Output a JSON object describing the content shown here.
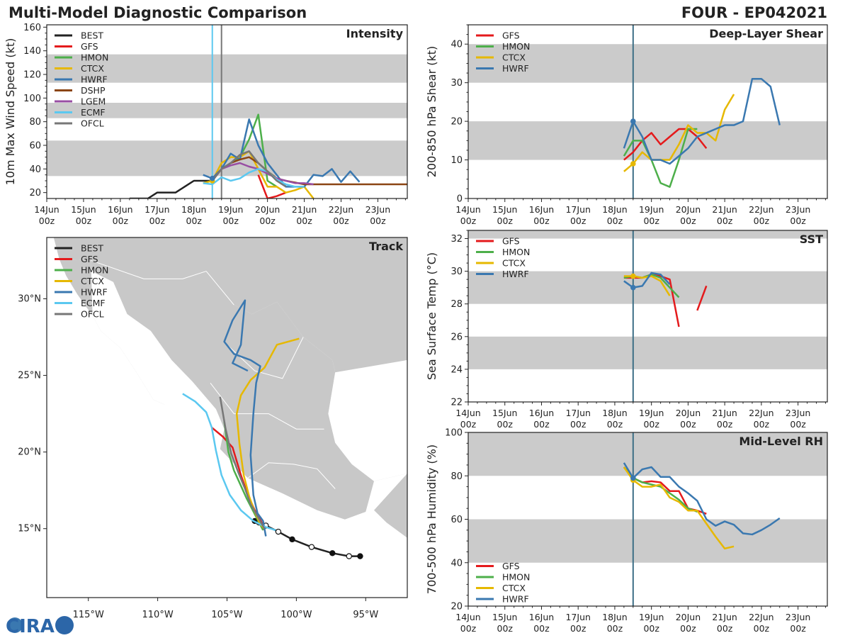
{
  "header": {
    "title": "Multi-Model Diagnostic Comparison",
    "storm_id": "FOUR - EP042021"
  },
  "colors": {
    "BEST": "#222222",
    "GFS": "#e41a1c",
    "HMON": "#4daf4a",
    "CTCX": "#e6b800",
    "HWRF": "#3a78b0",
    "DSHP": "#8b4513",
    "LGEM": "#984ea3",
    "ECMF": "#5bc8f0",
    "OFCL": "#777777",
    "band": "#cbcbcb",
    "land": "#c8c8c8",
    "vline": "#3d6f86"
  },
  "time_axis": {
    "ticks": [
      "14Jun 00z",
      "15Jun 00z",
      "16Jun 00z",
      "17Jun 00z",
      "18Jun 00z",
      "19Jun 00z",
      "20Jun 00z",
      "21Jun 00z",
      "22Jun 00z",
      "23Jun 00z"
    ]
  },
  "logo": {
    "text": "CIRA"
  },
  "chart_data": [
    {
      "id": "intensity",
      "type": "line",
      "title": "Intensity",
      "ylabel": "10m Max Wind Speed (kt)",
      "xlim": [
        0,
        9.8
      ],
      "ylim": [
        15,
        162
      ],
      "yticks": [
        20,
        40,
        60,
        80,
        100,
        120,
        140,
        160
      ],
      "bands": [
        [
          34,
          64
        ],
        [
          83,
          96
        ],
        [
          113,
          137
        ]
      ],
      "vlines": [
        {
          "x": 4.5,
          "color": "ECMF"
        },
        {
          "x": 4.75,
          "color": "OFCL"
        }
      ],
      "legend": [
        "BEST",
        "GFS",
        "HMON",
        "CTCX",
        "HWRF",
        "DSHP",
        "LGEM",
        "ECMF",
        "OFCL"
      ],
      "series": [
        {
          "name": "BEST",
          "x": [
            2.25,
            2.5,
            2.75,
            3.0,
            3.25,
            3.5,
            3.75,
            4.0,
            4.25,
            4.5
          ],
          "y": [
            15,
            15,
            15,
            20,
            20,
            20,
            25,
            30,
            30,
            30
          ]
        },
        {
          "name": "GFS",
          "x": [
            5.75,
            6.0,
            6.25,
            6.5
          ],
          "y": [
            35,
            15,
            17,
            20
          ]
        },
        {
          "name": "HMON",
          "x": [
            4.5,
            4.75,
            5.0,
            5.25,
            5.5,
            5.75,
            6.0,
            6.25
          ],
          "y": [
            30,
            40,
            45,
            50,
            65,
            86,
            30,
            25
          ]
        },
        {
          "name": "CTCX",
          "x": [
            4.25,
            4.5,
            4.75,
            5.0,
            5.25,
            5.5,
            5.75,
            6.0,
            6.25,
            6.5,
            6.75,
            7.0,
            7.25
          ],
          "y": [
            28,
            30,
            45,
            50,
            50,
            55,
            40,
            25,
            25,
            20,
            22,
            25,
            15
          ]
        },
        {
          "name": "HWRF",
          "x": [
            4.25,
            4.5,
            4.75,
            5.0,
            5.25,
            5.5,
            5.75,
            6.0,
            6.25,
            6.5,
            6.75,
            7.0,
            7.25,
            7.5,
            7.75,
            8.0,
            8.25,
            8.5
          ],
          "y": [
            35,
            32,
            40,
            53,
            48,
            82,
            60,
            45,
            35,
            25,
            25,
            25,
            35,
            34,
            40,
            29,
            38,
            29
          ]
        },
        {
          "name": "DSHP",
          "x": [
            4.5,
            4.75,
            5.0,
            5.25,
            5.5,
            5.75,
            6.0,
            6.25,
            6.5,
            7.0,
            8.0,
            9.0,
            9.8
          ],
          "y": [
            30,
            40,
            45,
            48,
            50,
            45,
            38,
            32,
            30,
            27,
            27,
            27,
            27
          ]
        },
        {
          "name": "LGEM",
          "x": [
            4.5,
            4.75,
            5.0,
            5.25,
            5.5,
            5.75,
            6.0,
            6.25,
            6.5,
            6.75,
            7.0,
            7.25
          ],
          "y": [
            30,
            40,
            43,
            45,
            42,
            40,
            36,
            32,
            30,
            28,
            28,
            27
          ]
        },
        {
          "name": "ECMF",
          "x": [
            4.25,
            4.5,
            4.75,
            5.0,
            5.25,
            5.5,
            5.75,
            6.0,
            6.25,
            6.5,
            6.75,
            7.0
          ],
          "y": [
            28,
            27,
            33,
            30,
            32,
            37,
            40,
            38,
            31,
            27,
            25,
            25
          ]
        },
        {
          "name": "OFCL",
          "x": [
            4.5,
            4.75,
            5.0,
            5.25,
            5.5,
            5.75,
            6.0,
            6.25,
            6.5
          ],
          "y": [
            30,
            40,
            45,
            52,
            55,
            45,
            38,
            30,
            25
          ]
        }
      ]
    },
    {
      "id": "shear",
      "type": "line",
      "title": "Deep-Layer Shear",
      "ylabel": "200-850 hPa Shear (kt)",
      "xlim": [
        0,
        9.8
      ],
      "ylim": [
        0,
        45
      ],
      "yticks": [
        0,
        10,
        20,
        30,
        40
      ],
      "bands": [
        [
          10,
          20
        ],
        [
          30,
          40
        ]
      ],
      "vlines": [
        {
          "x": 4.5,
          "color": "vline"
        }
      ],
      "legend": [
        "GFS",
        "HMON",
        "CTCX",
        "HWRF"
      ],
      "series": [
        {
          "name": "GFS",
          "x": [
            4.25,
            4.5,
            4.75,
            5.0,
            5.25,
            5.5,
            5.75,
            6.0,
            6.25,
            6.5
          ],
          "y": [
            10,
            12,
            15,
            17,
            14,
            16,
            18,
            18,
            16,
            13
          ]
        },
        {
          "name": "HMON",
          "x": [
            4.25,
            4.5,
            4.75,
            5.0,
            5.25,
            5.5,
            5.75,
            6.0,
            6.25
          ],
          "y": [
            11,
            15,
            15,
            10,
            4,
            3,
            10,
            18,
            18
          ]
        },
        {
          "name": "CTCX",
          "x": [
            4.25,
            4.5,
            4.75,
            5.0,
            5.25,
            5.5,
            5.75,
            6.0,
            6.25,
            6.5,
            6.75,
            7.0,
            7.25
          ],
          "y": [
            7,
            9,
            12,
            10,
            10,
            10,
            14,
            19,
            17,
            17,
            15,
            23,
            27
          ]
        },
        {
          "name": "HWRF",
          "x": [
            4.25,
            4.5,
            4.75,
            5.0,
            5.25,
            5.5,
            5.75,
            6.0,
            6.25,
            6.5,
            6.75,
            7.0,
            7.25,
            7.5,
            7.75,
            8.0,
            8.25,
            8.5
          ],
          "y": [
            13,
            20,
            16,
            10,
            10,
            9,
            11,
            13,
            16,
            17,
            18,
            19,
            19,
            20,
            31,
            31,
            29,
            19
          ]
        }
      ]
    },
    {
      "id": "sst",
      "type": "line",
      "title": "SST",
      "ylabel": "Sea Surface Temp (°C)",
      "xlim": [
        0,
        9.8
      ],
      "ylim": [
        22,
        32.5
      ],
      "yticks": [
        22,
        24,
        26,
        28,
        30,
        32
      ],
      "bands": [
        [
          24,
          26
        ],
        [
          28,
          30
        ],
        [
          32,
          33
        ]
      ],
      "vlines": [
        {
          "x": 4.5,
          "color": "vline"
        }
      ],
      "legend": [
        "GFS",
        "HMON",
        "CTCX",
        "HWRF"
      ],
      "series": [
        {
          "name": "GFS",
          "x": [
            4.25,
            4.5,
            4.75,
            5.0,
            5.25,
            5.5,
            5.75
          ],
          "y": [
            29.6,
            29.6,
            29.6,
            29.8,
            29.7,
            29.5,
            26.6
          ]
        },
        {
          "name": "GFS",
          "x": [
            6.25,
            6.5
          ],
          "y": [
            27.6,
            29.1
          ]
        },
        {
          "name": "HMON",
          "x": [
            4.25,
            4.5,
            4.75,
            5.0,
            5.25,
            5.5,
            5.75
          ],
          "y": [
            29.6,
            29.7,
            29.6,
            29.8,
            29.6,
            29.0,
            28.4
          ]
        },
        {
          "name": "CTCX",
          "x": [
            4.25,
            4.5,
            4.75,
            5.0,
            5.25,
            5.5
          ],
          "y": [
            29.7,
            29.7,
            29.6,
            29.7,
            29.4,
            28.5
          ]
        },
        {
          "name": "HWRF",
          "x": [
            4.25,
            4.5,
            4.75,
            5.0,
            5.25,
            5.5
          ],
          "y": [
            29.4,
            29.0,
            29.1,
            29.9,
            29.8,
            29.2
          ]
        }
      ]
    },
    {
      "id": "rh",
      "type": "line",
      "title": "Mid-Level RH",
      "ylabel": "700-500 hPa Humidity (%)",
      "xlim": [
        0,
        9.8
      ],
      "ylim": [
        20,
        100
      ],
      "yticks": [
        20,
        40,
        60,
        80,
        100
      ],
      "bands": [
        [
          40,
          60
        ],
        [
          80,
          100
        ]
      ],
      "vlines": [
        {
          "x": 4.5,
          "color": "vline"
        }
      ],
      "legend": [
        "GFS",
        "HMON",
        "CTCX",
        "HWRF"
      ],
      "legend_position": "bottom-left",
      "series": [
        {
          "name": "GFS",
          "x": [
            4.25,
            4.5,
            4.75,
            5.0,
            5.25,
            5.5,
            5.75,
            6.0,
            6.25,
            6.5
          ],
          "y": [
            84,
            79,
            77,
            77.5,
            77,
            73,
            73,
            65,
            64,
            62.5
          ]
        },
        {
          "name": "HMON",
          "x": [
            4.25,
            4.5,
            4.75,
            5.0,
            5.25,
            5.5,
            5.75,
            6.0,
            6.25
          ],
          "y": [
            84,
            79,
            77,
            76,
            75,
            72,
            69,
            65,
            63.5
          ]
        },
        {
          "name": "CTCX",
          "x": [
            4.25,
            4.5,
            4.75,
            5.0,
            5.25,
            5.5,
            5.75,
            6.0,
            6.25,
            6.5,
            6.75,
            7.0,
            7.25
          ],
          "y": [
            84,
            78,
            75,
            75,
            76,
            70,
            68,
            64,
            64,
            58,
            52,
            46.5,
            47.5
          ]
        },
        {
          "name": "HWRF",
          "x": [
            4.25,
            4.5,
            4.75,
            5.0,
            5.25,
            5.5,
            5.75,
            6.0,
            6.25,
            6.5,
            6.75,
            7.0,
            7.25,
            7.5,
            7.75,
            8.0,
            8.25,
            8.5
          ],
          "y": [
            86,
            79,
            83,
            84,
            79.5,
            79.5,
            75,
            72,
            68.5,
            60,
            57,
            59,
            57.5,
            53.5,
            53,
            55,
            57.5,
            60.5
          ]
        }
      ]
    },
    {
      "id": "track",
      "type": "line",
      "title": "Track",
      "xlim": [
        -118,
        -92
      ],
      "ylim": [
        10.5,
        34
      ],
      "xticks": [
        -115,
        -110,
        -105,
        -100,
        -95
      ],
      "xticklabels": [
        "115°W",
        "110°W",
        "105°W",
        "100°W",
        "95°W"
      ],
      "yticks": [
        15,
        20,
        25,
        30
      ],
      "yticklabels": [
        "15°N",
        "20°N",
        "25°N",
        "30°N"
      ],
      "legend": [
        "BEST",
        "GFS",
        "HMON",
        "CTCX",
        "HWRF",
        "ECMF",
        "OFCL"
      ],
      "series": [
        {
          "name": "BEST",
          "lon": [
            -95.4,
            -96.2,
            -97.4,
            -98.9,
            -100.3,
            -101.3,
            -102.2,
            -102.7,
            -103.0
          ],
          "lat": [
            13.2,
            13.2,
            13.4,
            13.8,
            14.3,
            14.8,
            15.2,
            15.4,
            15.5
          ],
          "filled": [
            true,
            false,
            true,
            false,
            true,
            false,
            false,
            false,
            true
          ]
        },
        {
          "name": "GFS",
          "lon": [
            -102.3,
            -102.5,
            -103.0,
            -103.5,
            -104.0,
            -104.6,
            -105.3,
            -106.1
          ],
          "lat": [
            14.9,
            15.4,
            16.2,
            17.2,
            18.5,
            20.3,
            21.0,
            21.6
          ]
        },
        {
          "name": "HMON",
          "lon": [
            -102.4,
            -102.8,
            -103.2,
            -103.6,
            -104.0,
            -104.5,
            -104.9,
            -105.2
          ],
          "lat": [
            14.9,
            15.6,
            16.3,
            17.0,
            17.8,
            18.8,
            20.0,
            22.0
          ]
        },
        {
          "name": "CTCX",
          "lon": [
            -102.3,
            -102.6,
            -103.0,
            -103.4,
            -103.8,
            -104.1,
            -104.3,
            -104.0,
            -103.3,
            -102.3,
            -101.4,
            -99.8
          ],
          "lat": [
            15.0,
            15.3,
            16.1,
            17.1,
            18.5,
            20.5,
            22.5,
            23.7,
            24.7,
            25.5,
            27.0,
            27.4
          ]
        },
        {
          "name": "HWRF",
          "lon": [
            -102.2,
            -102.4,
            -102.8,
            -103.1,
            -103.3,
            -103.1,
            -102.9,
            -102.6,
            -103.3,
            -104.5,
            -105.2,
            -104.6,
            -103.7,
            -104.0,
            -104.6,
            -103.5
          ],
          "lat": [
            14.5,
            15.5,
            16.0,
            17.2,
            19.8,
            22.5,
            24.5,
            25.6,
            26.0,
            26.4,
            27.2,
            28.6,
            29.9,
            27.0,
            25.8,
            25.3
          ]
        },
        {
          "name": "ECMF",
          "lon": [
            -101.5,
            -102.2,
            -103.1,
            -104.0,
            -104.8,
            -105.4,
            -105.8,
            -106.1,
            -106.5,
            -107.3,
            -108.2
          ],
          "lat": [
            14.9,
            15.1,
            15.5,
            16.2,
            17.2,
            18.5,
            20.1,
            21.6,
            22.6,
            23.3,
            23.8
          ]
        },
        {
          "name": "OFCL",
          "lon": [
            -102.3,
            -102.8,
            -103.3,
            -103.7,
            -104.2,
            -104.7,
            -105.1,
            -105.5
          ],
          "lat": [
            15.0,
            15.8,
            16.6,
            17.6,
            18.7,
            19.9,
            21.5,
            23.6
          ]
        }
      ]
    }
  ]
}
